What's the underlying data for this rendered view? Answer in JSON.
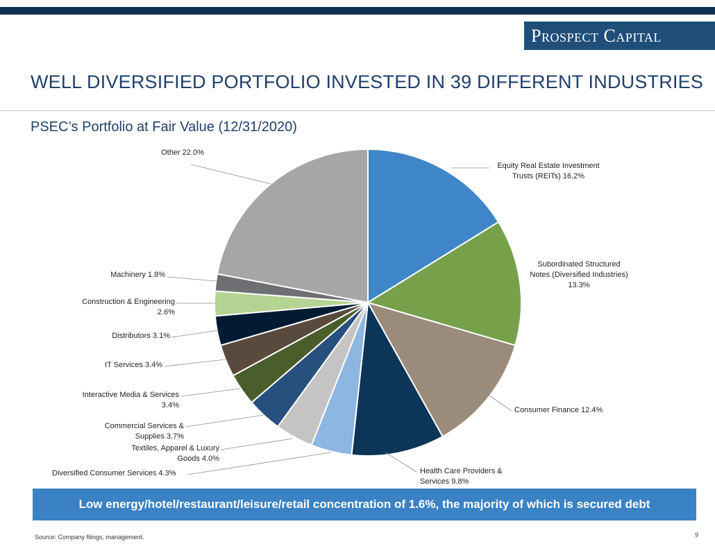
{
  "header": {
    "brand": "Prospect Capital",
    "title": "WELL DIVERSIFIED PORTFOLIO INVESTED IN 39 DIFFERENT INDUSTRIES"
  },
  "colors": {
    "top_bar": "#0f3354",
    "brand_box": "#1f4e79",
    "title": "#1f3f6a",
    "banner": "#3b82c4"
  },
  "chart_data": {
    "type": "pie",
    "title": "PSEC’s Portfolio at Fair Value (12/31/2020)",
    "unit": "%",
    "slices": [
      {
        "label": "Equity Real Estate Investment Trusts (REITs)",
        "value": 16.2,
        "label_lines": [
          "Equity Real Estate Investment",
          "Trusts (REITs) 16.2%"
        ],
        "color": "#3f86c8"
      },
      {
        "label": "Subordinated Structured Notes (Diversified Industries)",
        "value": 13.3,
        "label_lines": [
          "Subordinated Structured",
          "Notes (Diversified Industries)",
          "13.3%"
        ],
        "color": "#77a04a"
      },
      {
        "label": "Consumer Finance",
        "value": 12.4,
        "label_lines": [
          "Consumer Finance 12.4%"
        ],
        "color": "#9a8b7b"
      },
      {
        "label": "Health Care Providers & Services",
        "value": 9.8,
        "label_lines": [
          "Health Care Providers &",
          "Services 9.8%"
        ],
        "color": "#0c3558"
      },
      {
        "label": "Diversified Consumer Services",
        "value": 4.3,
        "label_lines": [
          "Diversified Consumer Services 4.3%"
        ],
        "color": "#8db7e0"
      },
      {
        "label": "Textiles, Apparel & Luxury Goods",
        "value": 4.0,
        "label_lines": [
          "Textiles, Apparel & Luxury",
          "Goods 4.0%"
        ],
        "color": "#c4c4c4"
      },
      {
        "label": "Commercial Services & Supplies",
        "value": 3.7,
        "label_lines": [
          "Commercial Services &",
          "Supplies 3.7%"
        ],
        "color": "#27507e"
      },
      {
        "label": "Interactive Media & Services",
        "value": 3.4,
        "label_lines": [
          "Interactive Media & Services",
          "3.4%"
        ],
        "color": "#4a5e2b"
      },
      {
        "label": "IT Services",
        "value": 3.4,
        "label_lines": [
          "IT Services 3.4%"
        ],
        "color": "#5a4a3e"
      },
      {
        "label": "Distributors",
        "value": 3.1,
        "label_lines": [
          "Distributors 3.1%"
        ],
        "color": "#021b33"
      },
      {
        "label": "Construction & Engineering",
        "value": 2.6,
        "label_lines": [
          "Construction & Engineering",
          "2.6%"
        ],
        "color": "#b5d392"
      },
      {
        "label": "Machinery",
        "value": 1.8,
        "label_lines": [
          "Machinery 1.8%"
        ],
        "color": "#6d6f72"
      },
      {
        "label": "Other",
        "value": 22.0,
        "label_lines": [
          "Other 22.0%"
        ],
        "color": "#a6a6a6"
      }
    ]
  },
  "banner_text": "Low energy/hotel/restaurant/leisure/retail concentration of 1.6%, the majority of which is secured debt",
  "footer": {
    "source": "Source: Company filings, management.",
    "page_number": "9"
  }
}
